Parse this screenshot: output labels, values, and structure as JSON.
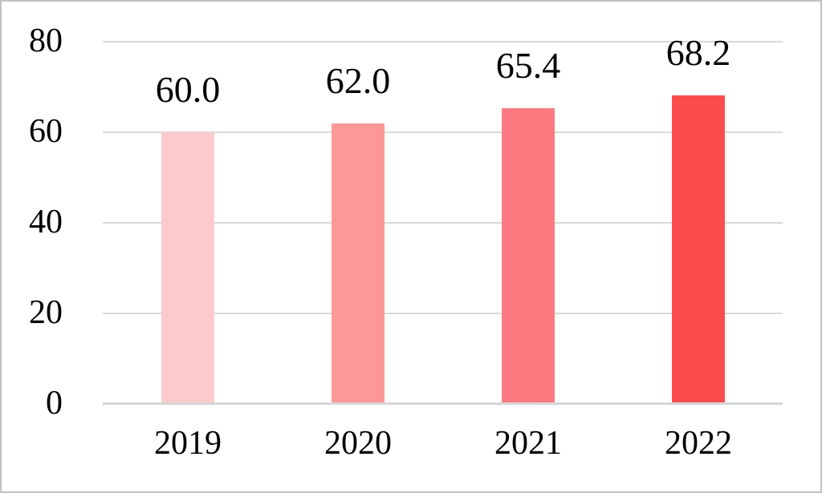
{
  "figure": {
    "background": "#FFFFFF",
    "border_color": "#C1C1C1",
    "text_color": "#000000"
  },
  "chart_data": {
    "type": "bar",
    "title": "",
    "xlabel": "",
    "ylabel": "",
    "categories": [
      "2019",
      "2020",
      "2021",
      "2022"
    ],
    "values": [
      60.0,
      62.0,
      65.4,
      68.2
    ],
    "value_labels": [
      "60.0",
      "62.0",
      "65.4",
      "68.2"
    ],
    "bar_colors": [
      "#FBCBCB",
      "#FC9998",
      "#FD7B80",
      "#FB4D4D"
    ],
    "ylim": [
      0,
      80
    ],
    "yticks": [
      80,
      60,
      40,
      20,
      0
    ],
    "ytick_labels": [
      "80",
      "60",
      "40",
      "20",
      "0"
    ],
    "grid": true,
    "gridline_color": "#D9D9D9",
    "axis_line_color": "#D6D6D6",
    "legend": false
  }
}
